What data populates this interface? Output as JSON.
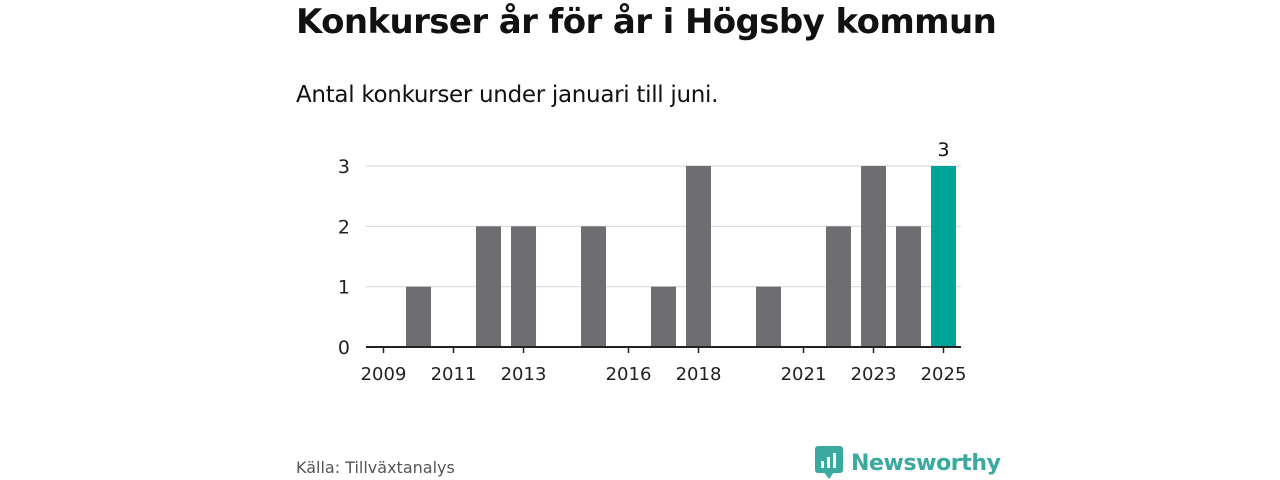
{
  "title": "Konkurser år för år i Högsby kommun",
  "subtitle": "Antal konkurser under januari till juni.",
  "source": "Källa: Tillväxtanalys",
  "brand": {
    "name": "Newsworthy",
    "icon": "newsworthy-logo-icon"
  },
  "colors": {
    "bar": "#6e6e72",
    "highlight": "#00a398",
    "brand": "#3aa99f",
    "grid": "#d9d9d9",
    "axis": "#222222"
  },
  "chart_data": {
    "type": "bar",
    "title": "Konkurser år för år i Högsby kommun",
    "subtitle": "Antal konkurser under januari till juni.",
    "categories": [
      "2009",
      "2010",
      "2011",
      "2012",
      "2013",
      "2014",
      "2015",
      "2016",
      "2017",
      "2018",
      "2019",
      "2020",
      "2021",
      "2022",
      "2023",
      "2024",
      "2025"
    ],
    "values": [
      0,
      1,
      0,
      2,
      2,
      0,
      2,
      0,
      1,
      3,
      0,
      1,
      0,
      2,
      3,
      2,
      3
    ],
    "highlight_category": "2025",
    "data_labels": [
      {
        "category": "2025",
        "text": "3"
      }
    ],
    "x_tick_labels": [
      "2009",
      "2011",
      "2013",
      "2016",
      "2018",
      "2021",
      "2023",
      "2025"
    ],
    "y_ticks": [
      0,
      1,
      2,
      3
    ],
    "ylim": [
      0,
      3
    ],
    "xlabel": "",
    "ylabel": "",
    "grid": true,
    "legend": "none"
  }
}
